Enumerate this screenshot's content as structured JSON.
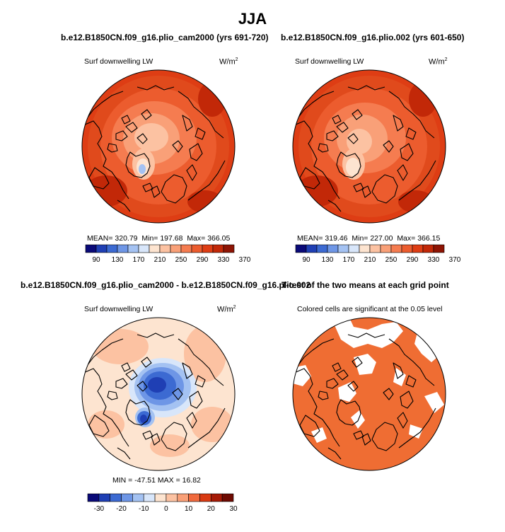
{
  "figure": {
    "title": "JJA",
    "variable": "Surf downwelling LW",
    "units_base": "W/m",
    "units_exp": "2"
  },
  "panels": {
    "p1": {
      "title": "b.e12.B1850CN.f09_g16.plio_cam2000 (yrs 691-720)",
      "variable": "Surf downwelling LW",
      "stats": {
        "mean_label": "MEAN=",
        "mean": "320.79",
        "min_label": "Min=",
        "min": "197.68",
        "max_label": "Max=",
        "max": "366.05"
      }
    },
    "p2": {
      "title": "b.e12.B1850CN.f09_g16.plio.002 (yrs 601-650)",
      "variable": "Surf downwelling LW",
      "stats": {
        "mean_label": "MEAN=",
        "mean": "319.46",
        "min_label": "Min=",
        "min": "227.00",
        "max_label": "Max=",
        "max": "366.15"
      }
    },
    "p3": {
      "title": "b.e12.B1850CN.f09_g16.plio_cam2000 - b.e12.B1850CN.f09_g16.plio.002",
      "variable": "Surf downwelling LW",
      "stats_line": "MIN = -47.51  MAX =  16.82"
    },
    "p4": {
      "title": "T-test of the two means at each grid point",
      "subtitle": "Colored cells are significant at the 0.05 level"
    }
  },
  "colors": {
    "abs_scale": [
      "#0a0a78",
      "#1f3fb4",
      "#3c6ad2",
      "#6e96e6",
      "#a4c2f2",
      "#d8e6fa",
      "#fde4d0",
      "#fcc2a2",
      "#f9a078",
      "#f57c50",
      "#ec5c2e",
      "#de3d14",
      "#c22808",
      "#8e1404"
    ],
    "diff_scale": [
      "#0a0a78",
      "#1f3fb4",
      "#3c6ad2",
      "#6e96e6",
      "#a4c2f2",
      "#d8e6fa",
      "#fde4d0",
      "#fcc2a2",
      "#f9a078",
      "#f06a3e",
      "#d93a12",
      "#a61a06",
      "#6e0a02"
    ],
    "significance": "#ef6d33"
  },
  "chart_data": [
    {
      "type": "heatmap",
      "title": "b.e12.B1850CN.f09_g16.plio_cam2000 (yrs 691-720)",
      "variable": "Surf downwelling LW",
      "units": "W/m2",
      "stats": {
        "mean": 320.79,
        "min": 197.68,
        "max": 366.05
      },
      "colorbar_ticks": [
        "90",
        "130",
        "170",
        "210",
        "250",
        "290",
        "330",
        "370"
      ],
      "colorbar_levels": [
        90,
        110,
        130,
        150,
        170,
        190,
        210,
        230,
        250,
        270,
        290,
        310,
        330,
        350,
        370
      ]
    },
    {
      "type": "heatmap",
      "title": "b.e12.B1850CN.f09_g16.plio.002 (yrs 601-650)",
      "variable": "Surf downwelling LW",
      "units": "W/m2",
      "stats": {
        "mean": 319.46,
        "min": 227.0,
        "max": 366.15
      },
      "colorbar_ticks": [
        "90",
        "130",
        "170",
        "210",
        "250",
        "290",
        "330",
        "370"
      ],
      "colorbar_levels": [
        90,
        110,
        130,
        150,
        170,
        190,
        210,
        230,
        250,
        270,
        290,
        310,
        330,
        350,
        370
      ]
    },
    {
      "type": "heatmap",
      "title": "b.e12.B1850CN.f09_g16.plio_cam2000 - b.e12.B1850CN.f09_g16.plio.002",
      "variable": "Surf downwelling LW",
      "units": "W/m2",
      "stats": {
        "min": -47.51,
        "max": 16.82
      },
      "colorbar_ticks": [
        "-30",
        "-20",
        "-10",
        "0",
        "10",
        "20",
        "30"
      ],
      "colorbar_levels": [
        -35,
        -30,
        -25,
        -20,
        -15,
        -10,
        -5,
        0,
        5,
        10,
        15,
        20,
        25,
        30,
        35
      ]
    },
    {
      "type": "heatmap",
      "title": "T-test of the two means at each grid point",
      "subtitle": "Colored cells are significant at the 0.05 level",
      "significance_level": 0.05
    }
  ]
}
